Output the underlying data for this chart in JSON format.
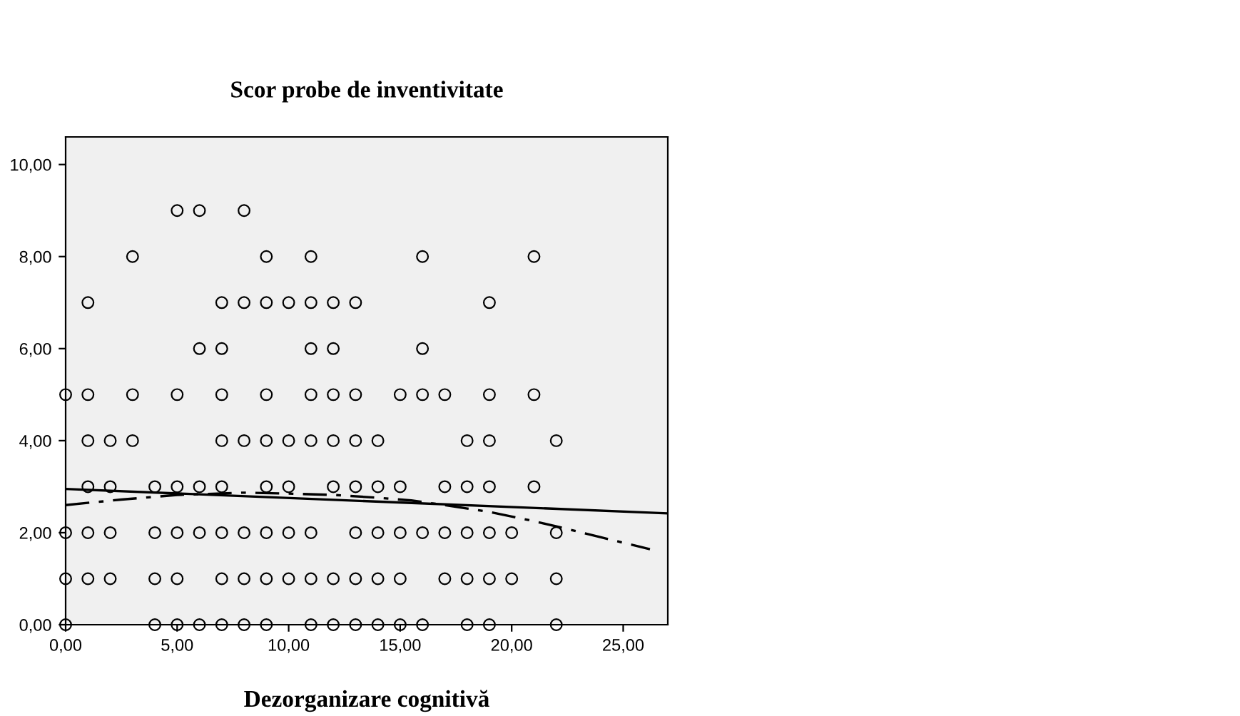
{
  "chart_data": {
    "type": "scatter",
    "title": "Scor probe de inventivitate",
    "xlabel": "Dezorganizare cognitivă",
    "xlim": [
      0,
      27
    ],
    "ylim": [
      0,
      10.6
    ],
    "xticks": [
      {
        "value": 0,
        "label": "0,00"
      },
      {
        "value": 5,
        "label": "5,00"
      },
      {
        "value": 10,
        "label": "10,00"
      },
      {
        "value": 15,
        "label": "15,00"
      },
      {
        "value": 20,
        "label": "20,00"
      },
      {
        "value": 25,
        "label": "25,00"
      }
    ],
    "yticks": [
      {
        "value": 0,
        "label": "0,00"
      },
      {
        "value": 2,
        "label": "2,00"
      },
      {
        "value": 4,
        "label": "4,00"
      },
      {
        "value": 6,
        "label": "6,00"
      },
      {
        "value": 8,
        "label": "8,00"
      },
      {
        "value": 10,
        "label": "10,00"
      }
    ],
    "grid": false,
    "legend": false,
    "series": [
      {
        "color": "#000000",
        "marker": "circle",
        "x": [
          5,
          6,
          8,
          3,
          9,
          11,
          16,
          21,
          1,
          7,
          8,
          9,
          10,
          11,
          12,
          13,
          19,
          6,
          7,
          11,
          12,
          16,
          0,
          1,
          3,
          5,
          7,
          9,
          11,
          12,
          13,
          15,
          16,
          17,
          19,
          21,
          1,
          2,
          3,
          7,
          8,
          9,
          10,
          11,
          12,
          13,
          14,
          18,
          19,
          22,
          1,
          2,
          4,
          5,
          6,
          7,
          9,
          10,
          12,
          13,
          14,
          15,
          17,
          18,
          19,
          21,
          0,
          1,
          2,
          4,
          5,
          6,
          7,
          8,
          9,
          10,
          11,
          13,
          14,
          15,
          16,
          17,
          18,
          19,
          20,
          22,
          0,
          1,
          2,
          4,
          5,
          7,
          8,
          9,
          10,
          11,
          12,
          13,
          14,
          15,
          17,
          18,
          19,
          20,
          22,
          0,
          4,
          5,
          6,
          7,
          8,
          9,
          11,
          12,
          13,
          14,
          15,
          16,
          18,
          19,
          22
        ],
        "values": [
          9,
          9,
          9,
          8,
          8,
          8,
          8,
          8,
          7,
          7,
          7,
          7,
          7,
          7,
          7,
          7,
          7,
          6,
          6,
          6,
          6,
          6,
          5,
          5,
          5,
          5,
          5,
          5,
          5,
          5,
          5,
          5,
          5,
          5,
          5,
          5,
          4,
          4,
          4,
          4,
          4,
          4,
          4,
          4,
          4,
          4,
          4,
          4,
          4,
          4,
          3,
          3,
          3,
          3,
          3,
          3,
          3,
          3,
          3,
          3,
          3,
          3,
          3,
          3,
          3,
          3,
          2,
          2,
          2,
          2,
          2,
          2,
          2,
          2,
          2,
          2,
          2,
          2,
          2,
          2,
          2,
          2,
          2,
          2,
          2,
          2,
          1,
          1,
          1,
          1,
          1,
          1,
          1,
          1,
          1,
          1,
          1,
          1,
          1,
          1,
          1,
          1,
          1,
          1,
          1,
          0,
          0,
          0,
          0,
          0,
          0,
          0,
          0,
          0,
          0,
          0,
          0,
          0,
          0,
          0,
          0
        ]
      },
      {
        "type": "line",
        "color": "#000000",
        "line_style": "solid",
        "marker": "none",
        "x": [
          0,
          27
        ],
        "values": [
          2.95,
          2.42
        ]
      },
      {
        "type": "line",
        "color": "#000000",
        "line_style": "dashed",
        "marker": "none",
        "x": [
          0,
          2.5,
          5,
          8,
          10,
          12,
          14,
          15.5,
          17,
          19,
          21,
          22.5,
          24,
          26.2
        ],
        "values": [
          2.6,
          2.72,
          2.82,
          2.87,
          2.85,
          2.82,
          2.76,
          2.7,
          2.6,
          2.45,
          2.25,
          2.08,
          1.9,
          1.64
        ]
      }
    ]
  }
}
